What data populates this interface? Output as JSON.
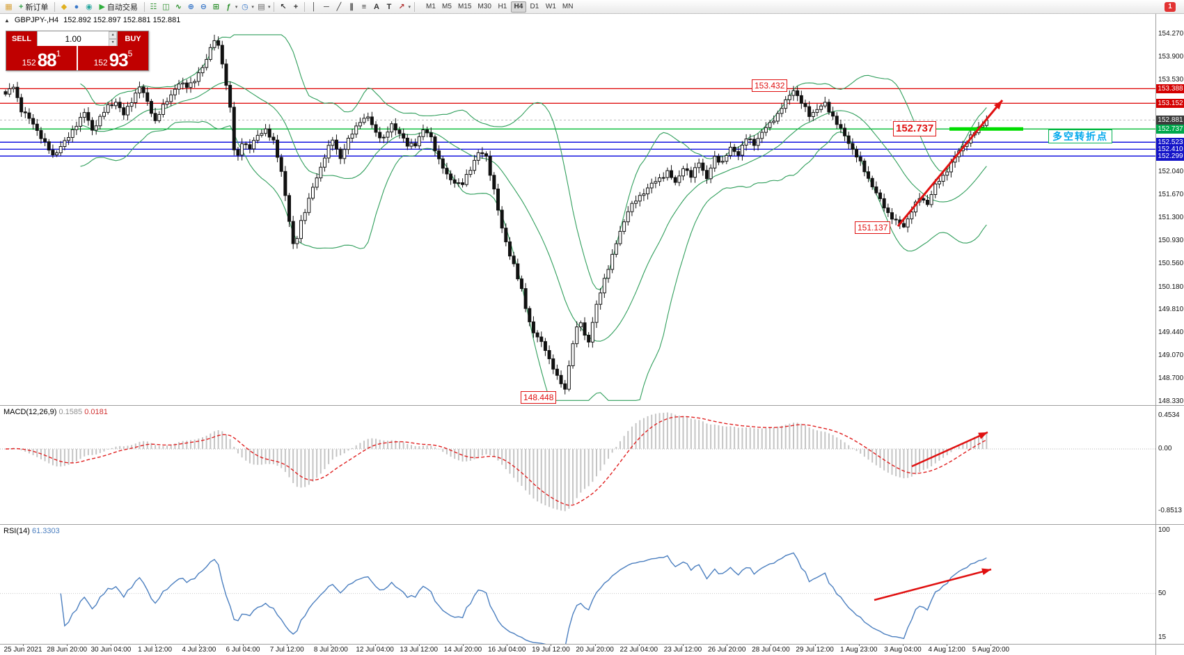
{
  "toolbar": {
    "items": [
      {
        "kind": "icon",
        "name": "terminal-icon",
        "glyph": "▦",
        "color": "#d8a33a"
      },
      {
        "kind": "labeled",
        "name": "new-order-button",
        "icon_name": "new-order-icon",
        "glyph": "+",
        "color": "#2f9e44",
        "label": "新订单"
      },
      {
        "kind": "sep"
      },
      {
        "kind": "icon",
        "name": "favorites-icon",
        "glyph": "◆",
        "color": "#e0b020"
      },
      {
        "kind": "icon",
        "name": "market-watch-icon",
        "glyph": "●",
        "color": "#3a78c9"
      },
      {
        "kind": "icon",
        "name": "data-window-icon",
        "glyph": "◉",
        "color": "#2aa8a0"
      },
      {
        "kind": "labeled",
        "name": "auto-trading-button",
        "icon_name": "auto-trading-icon",
        "glyph": "▶",
        "color": "#2fae3c",
        "label": "自动交易"
      },
      {
        "kind": "sep"
      },
      {
        "kind": "icon",
        "name": "bar-chart-icon",
        "glyph": "☷",
        "color": "#2a8f2a"
      },
      {
        "kind": "icon",
        "name": "candlestick-chart-icon",
        "glyph": "◫",
        "color": "#2a8f2a"
      },
      {
        "kind": "icon",
        "name": "line-chart-icon",
        "glyph": "∿",
        "color": "#2a8f2a"
      },
      {
        "kind": "icon",
        "name": "zoom-in-icon",
        "glyph": "⊕",
        "color": "#3a78c9"
      },
      {
        "kind": "icon",
        "name": "zoom-out-icon",
        "glyph": "⊖",
        "color": "#3a78c9"
      },
      {
        "kind": "icon",
        "name": "tile-windows-icon",
        "glyph": "⊞",
        "color": "#2a8f2a"
      },
      {
        "kind": "icon-drop",
        "name": "indicators-button",
        "glyph": "ƒ",
        "color": "#2a8f2a"
      },
      {
        "kind": "icon-drop",
        "name": "periods-button",
        "glyph": "◷",
        "color": "#3a78c9"
      },
      {
        "kind": "icon-drop",
        "name": "templates-button",
        "glyph": "▤",
        "color": "#666666"
      },
      {
        "kind": "sep"
      },
      {
        "kind": "icon",
        "name": "cursor-icon",
        "glyph": "↖",
        "color": "#303030"
      },
      {
        "kind": "icon",
        "name": "crosshair-icon",
        "glyph": "+",
        "color": "#303030"
      },
      {
        "kind": "sep"
      },
      {
        "kind": "icon",
        "name": "vertical-line-icon",
        "glyph": "│",
        "color": "#303030"
      },
      {
        "kind": "icon",
        "name": "horizontal-line-icon",
        "glyph": "─",
        "color": "#303030"
      },
      {
        "kind": "icon",
        "name": "trendline-icon",
        "glyph": "╱",
        "color": "#303030"
      },
      {
        "kind": "icon",
        "name": "equidistant-channel-icon",
        "glyph": "∥",
        "color": "#303030"
      },
      {
        "kind": "icon",
        "name": "fibonacci-icon",
        "glyph": "≡",
        "color": "#303030"
      },
      {
        "kind": "icon",
        "name": "text-icon",
        "glyph": "A",
        "color": "#303030"
      },
      {
        "kind": "icon",
        "name": "text-label-icon",
        "glyph": "T",
        "color": "#303030"
      },
      {
        "kind": "icon-drop",
        "name": "arrows-button",
        "glyph": "↗",
        "color": "#b03030"
      },
      {
        "kind": "sep"
      }
    ],
    "dropdown_glyph": "▾",
    "timeframes": [
      "M1",
      "M5",
      "M15",
      "M30",
      "H1",
      "H4",
      "D1",
      "W1",
      "MN"
    ],
    "active_timeframe": "H4",
    "notification_count": "1"
  },
  "chart_header": {
    "symbol_period": "GBPJPY-,H4",
    "ohlc": "152.892 152.897 152.881 152.881"
  },
  "icons": {
    "one_click_collapse": "▲",
    "spin_up": "▴",
    "spin_down": "▾"
  },
  "one_click": {
    "sell_label": "SELL",
    "buy_label": "BUY",
    "volume": "1.00",
    "bid": {
      "prefix": "152",
      "big": "88",
      "sup": "1"
    },
    "ask": {
      "prefix": "152",
      "big": "93",
      "sup": "5"
    }
  },
  "annotations": {
    "high_label": "153.432",
    "pivot_label": "152.737",
    "low_label": "151.137",
    "bottom_label": "148.448",
    "cn_note": "多空转折点"
  },
  "price_scale": {
    "ticks": [
      "154.270",
      "153.900",
      "153.530",
      "152.040",
      "151.670",
      "151.300",
      "150.930",
      "150.560",
      "150.180",
      "149.810",
      "149.440",
      "149.070",
      "148.700",
      "148.330"
    ],
    "badges": [
      {
        "value": "153.388",
        "color": "#d40000"
      },
      {
        "value": "153.152",
        "color": "#d40000"
      },
      {
        "value": "152.881",
        "color": "#3c3c3c"
      },
      {
        "value": "152.737",
        "color": "#00a84c"
      },
      {
        "value": "152.523",
        "color": "#1414c8"
      },
      {
        "value": "152.410",
        "color": "#1414c8"
      },
      {
        "value": "152.299",
        "color": "#1414c8"
      }
    ]
  },
  "macd": {
    "label": "MACD(12,26,9)",
    "value_main": "0.1585",
    "value_signal": "0.0181",
    "scale_top": "0.4534",
    "scale_zero": "0.00",
    "scale_bottom": "-0.8513"
  },
  "rsi": {
    "label": "RSI(14)",
    "value": "61.3303",
    "scale_top": "100",
    "scale_mid": "50",
    "scale_bottom": "15"
  },
  "time_axis": {
    "labels": [
      "25 Jun 2021",
      "28 Jun 20:00",
      "30 Jun 04:00",
      "1 Jul 12:00",
      "4 Jul 23:00",
      "6 Jul 04:00",
      "7 Jul 12:00",
      "8 Jul 20:00",
      "12 Jul 04:00",
      "13 Jul 12:00",
      "14 Jul 20:00",
      "16 Jul 04:00",
      "19 Jul 12:00",
      "20 Jul 20:00",
      "22 Jul 04:00",
      "23 Jul 12:00",
      "26 Jul 20:00",
      "28 Jul 04:00",
      "29 Jul 12:00",
      "1 Aug 23:00",
      "3 Aug 04:00",
      "4 Aug 12:00",
      "5 Aug 20:00"
    ]
  },
  "chart_data": {
    "type": "candlestick",
    "symbol": "GBPJPY",
    "timeframe": "H4",
    "bars": 250,
    "last_price": 152.881,
    "ylim": [
      148.33,
      154.27
    ],
    "price_anchors": [
      [
        0,
        153.3
      ],
      [
        2,
        153.42
      ],
      [
        4,
        153.05
      ],
      [
        6,
        152.9
      ],
      [
        8,
        152.72
      ],
      [
        10,
        152.5
      ],
      [
        12,
        152.3
      ],
      [
        14,
        152.46
      ],
      [
        16,
        152.6
      ],
      [
        18,
        152.82
      ],
      [
        20,
        153.0
      ],
      [
        22,
        152.72
      ],
      [
        24,
        152.92
      ],
      [
        26,
        153.1
      ],
      [
        28,
        153.18
      ],
      [
        30,
        152.96
      ],
      [
        32,
        153.2
      ],
      [
        34,
        153.42
      ],
      [
        36,
        153.18
      ],
      [
        38,
        152.86
      ],
      [
        40,
        153.1
      ],
      [
        42,
        153.3
      ],
      [
        44,
        153.46
      ],
      [
        46,
        153.44
      ],
      [
        48,
        153.52
      ],
      [
        50,
        153.72
      ],
      [
        52,
        154.05
      ],
      [
        53,
        154.18
      ],
      [
        54,
        154.05
      ],
      [
        55,
        153.8
      ],
      [
        56,
        153.45
      ],
      [
        57,
        153.1
      ],
      [
        58,
        152.4
      ],
      [
        59,
        152.28
      ],
      [
        60,
        152.52
      ],
      [
        62,
        152.44
      ],
      [
        64,
        152.62
      ],
      [
        66,
        152.74
      ],
      [
        68,
        152.52
      ],
      [
        70,
        152.05
      ],
      [
        71,
        151.68
      ],
      [
        72,
        151.25
      ],
      [
        73,
        150.85
      ],
      [
        74,
        150.98
      ],
      [
        75,
        151.25
      ],
      [
        76,
        151.42
      ],
      [
        77,
        151.6
      ],
      [
        78,
        151.78
      ],
      [
        79,
        151.95
      ],
      [
        80,
        152.12
      ],
      [
        81,
        152.3
      ],
      [
        82,
        152.44
      ],
      [
        83,
        152.56
      ],
      [
        84,
        152.4
      ],
      [
        85,
        152.28
      ],
      [
        86,
        152.42
      ],
      [
        87,
        152.56
      ],
      [
        88,
        152.66
      ],
      [
        90,
        152.88
      ],
      [
        92,
        152.92
      ],
      [
        94,
        152.68
      ],
      [
        96,
        152.58
      ],
      [
        98,
        152.8
      ],
      [
        100,
        152.68
      ],
      [
        102,
        152.46
      ],
      [
        104,
        152.5
      ],
      [
        106,
        152.72
      ],
      [
        108,
        152.6
      ],
      [
        110,
        152.24
      ],
      [
        112,
        151.98
      ],
      [
        114,
        151.88
      ],
      [
        116,
        151.84
      ],
      [
        118,
        152.1
      ],
      [
        120,
        152.36
      ],
      [
        122,
        152.28
      ],
      [
        124,
        151.76
      ],
      [
        125,
        151.44
      ],
      [
        126,
        151.1
      ],
      [
        127,
        150.92
      ],
      [
        128,
        150.7
      ],
      [
        129,
        150.56
      ],
      [
        130,
        150.32
      ],
      [
        131,
        150.12
      ],
      [
        132,
        149.86
      ],
      [
        133,
        149.62
      ],
      [
        134,
        149.46
      ],
      [
        135,
        149.36
      ],
      [
        136,
        149.28
      ],
      [
        137,
        149.18
      ],
      [
        138,
        149.02
      ],
      [
        139,
        148.88
      ],
      [
        140,
        148.72
      ],
      [
        141,
        148.62
      ],
      [
        142,
        148.54
      ],
      [
        143,
        148.92
      ],
      [
        144,
        149.28
      ],
      [
        145,
        149.5
      ],
      [
        146,
        149.62
      ],
      [
        147,
        149.4
      ],
      [
        148,
        149.32
      ],
      [
        149,
        149.6
      ],
      [
        150,
        149.88
      ],
      [
        152,
        150.32
      ],
      [
        154,
        150.68
      ],
      [
        156,
        151.08
      ],
      [
        158,
        151.42
      ],
      [
        160,
        151.58
      ],
      [
        162,
        151.72
      ],
      [
        164,
        151.84
      ],
      [
        166,
        151.94
      ],
      [
        168,
        152.04
      ],
      [
        170,
        151.86
      ],
      [
        172,
        152.12
      ],
      [
        174,
        151.96
      ],
      [
        176,
        152.22
      ],
      [
        178,
        151.92
      ],
      [
        180,
        152.28
      ],
      [
        182,
        152.2
      ],
      [
        184,
        152.42
      ],
      [
        186,
        152.34
      ],
      [
        188,
        152.58
      ],
      [
        190,
        152.5
      ],
      [
        192,
        152.68
      ],
      [
        194,
        152.82
      ],
      [
        196,
        152.98
      ],
      [
        198,
        153.18
      ],
      [
        200,
        153.38
      ],
      [
        202,
        153.16
      ],
      [
        204,
        152.96
      ],
      [
        206,
        153.06
      ],
      [
        208,
        153.14
      ],
      [
        210,
        152.94
      ],
      [
        212,
        152.72
      ],
      [
        214,
        152.52
      ],
      [
        216,
        152.3
      ],
      [
        218,
        152.06
      ],
      [
        220,
        151.82
      ],
      [
        222,
        151.58
      ],
      [
        224,
        151.38
      ],
      [
        226,
        151.24
      ],
      [
        228,
        151.16
      ],
      [
        230,
        151.42
      ],
      [
        232,
        151.62
      ],
      [
        234,
        151.54
      ],
      [
        236,
        151.82
      ],
      [
        238,
        151.98
      ],
      [
        240,
        152.18
      ],
      [
        242,
        152.38
      ],
      [
        244,
        152.54
      ],
      [
        246,
        152.68
      ],
      [
        248,
        152.82
      ],
      [
        249,
        152.881
      ]
    ],
    "key_points": [
      {
        "bar": 53,
        "high": 154.26
      },
      {
        "bar": 142,
        "low": 148.448
      },
      {
        "bar": 200,
        "high": 153.432
      },
      {
        "bar": 228,
        "low": 151.137
      }
    ],
    "hlines": [
      {
        "price": 153.388,
        "color": "#dd0000",
        "w": 1.2
      },
      {
        "price": 153.152,
        "color": "#dd0000",
        "w": 1.2
      },
      {
        "price": 152.737,
        "color": "#00bb33",
        "w": 1.4
      },
      {
        "price": 152.523,
        "color": "#0000dd",
        "w": 1.4
      },
      {
        "price": 152.41,
        "color": "#0000dd",
        "w": 1.2
      },
      {
        "price": 152.299,
        "color": "#0000dd",
        "w": 1.4
      }
    ],
    "trend_segment": {
      "price": 152.737
    },
    "bollinger": {
      "period": 20,
      "deviation": 2
    },
    "macd_params": [
      12,
      26,
      9
    ],
    "rsi_period": 14,
    "colors": {
      "bollinger": "#2f9e5b",
      "macd_hist": "#c4c4c4",
      "macd_signal": "#e02020",
      "rsi": "#4a7ebf",
      "arrow": "#e01010",
      "trend_segment": "#00dd00",
      "accent_red": "#c00000"
    }
  }
}
